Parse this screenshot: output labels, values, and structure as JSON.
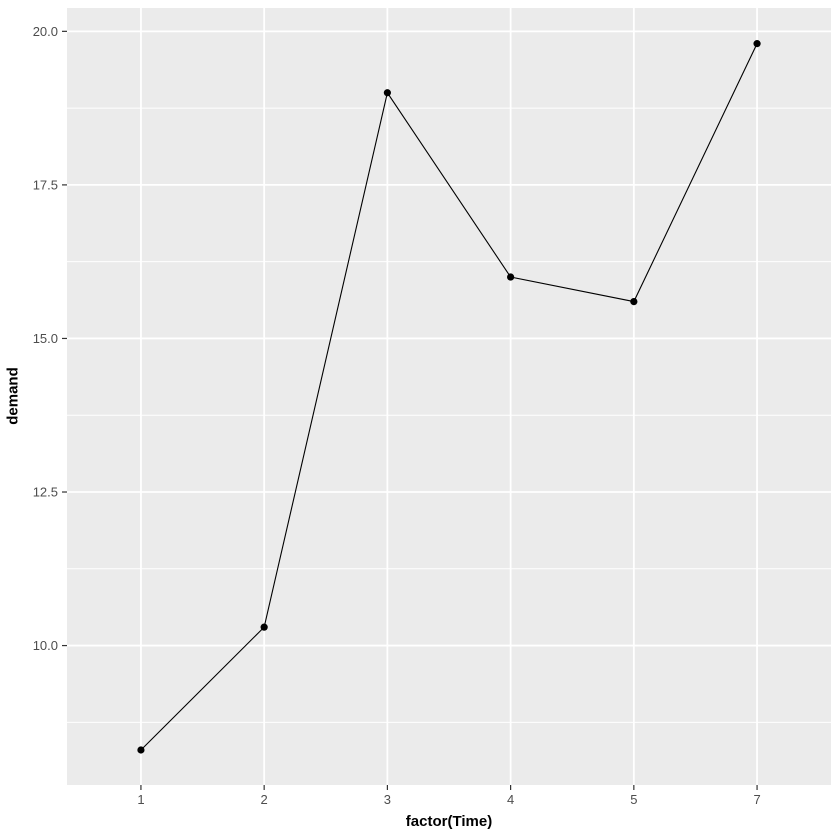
{
  "chart_data": {
    "type": "line",
    "title": "",
    "xlabel": "factor(Time)",
    "ylabel": "demand",
    "categories": [
      "1",
      "2",
      "3",
      "4",
      "5",
      "7"
    ],
    "series": [
      {
        "name": "demand",
        "values": [
          8.3,
          10.3,
          19.0,
          16.0,
          15.6,
          19.8
        ]
      }
    ],
    "yticks": {
      "values": [
        10.0,
        12.5,
        15.0,
        17.5,
        20.0
      ],
      "labels": [
        "10.0",
        "12.5",
        "15.0",
        "17.5",
        "20.0"
      ]
    },
    "ylim": [
      7.73,
      20.38
    ],
    "grid": "on",
    "legend": "none",
    "colors": {
      "panel_bg": "#ebebeb",
      "grid": "#ffffff",
      "line": "#000000",
      "point": "#000000",
      "tick_mark": "#333333",
      "tick_label": "#4d4d4d",
      "axis_title": "#000000"
    }
  }
}
